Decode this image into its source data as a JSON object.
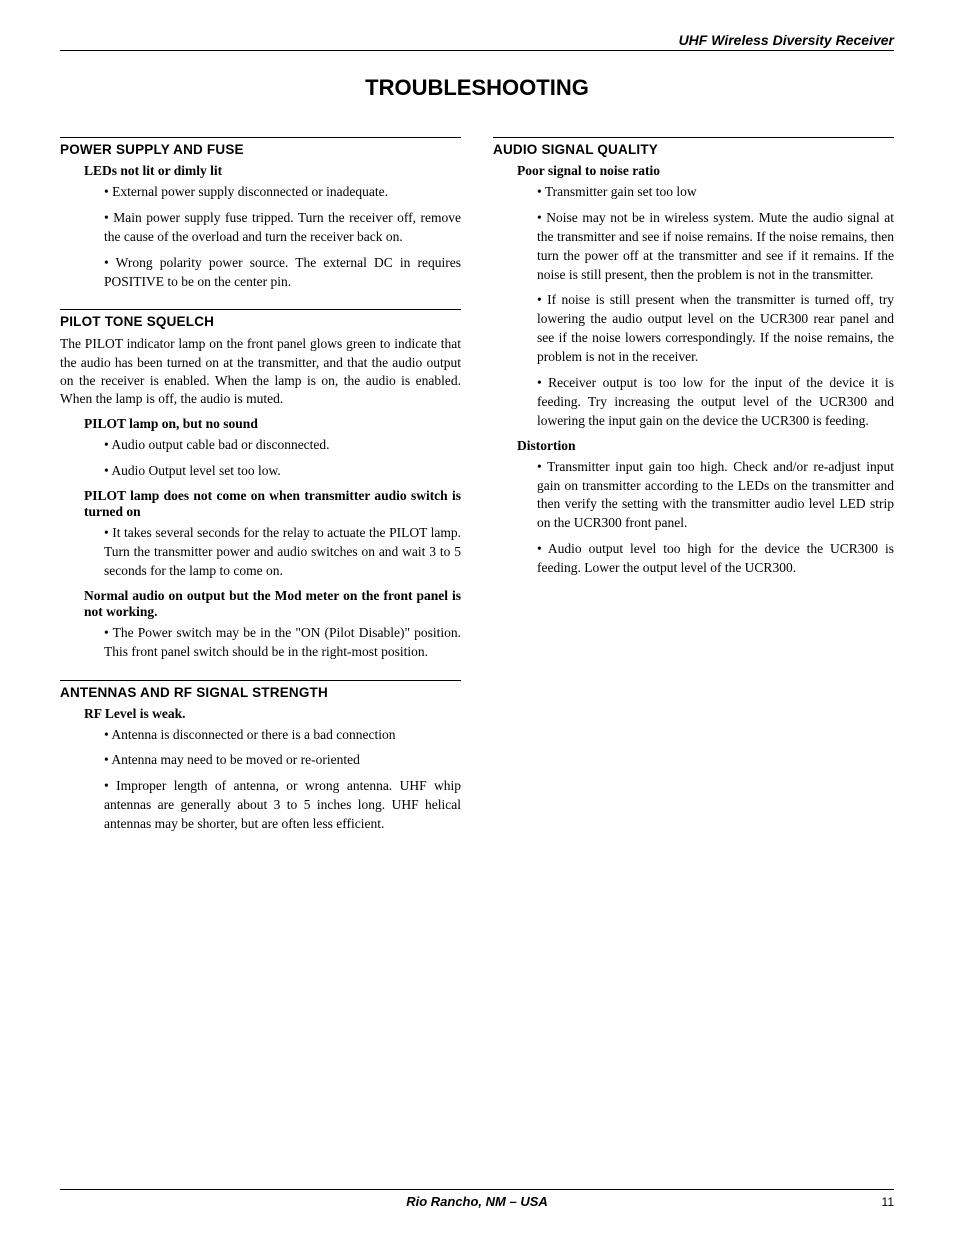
{
  "header": {
    "product": "UHF Wireless Diversity Receiver"
  },
  "title": "TROUBLESHOOTING",
  "left": {
    "s1": {
      "heading": "POWER SUPPLY AND FUSE",
      "sub1": "LEDs not lit or dimly lit",
      "b1": "• External power supply disconnected or inadequate.",
      "b2": "• Main power supply fuse tripped.  Turn the receiver off, remove the cause of the overload and turn the receiver back on.",
      "b3": "• Wrong polarity power source.  The external DC in requires POSITIVE to be on the center pin."
    },
    "s2": {
      "heading": "PILOT TONE SQUELCH",
      "intro": "The PILOT indicator lamp on the front panel glows green to indicate that the audio has been turned on at the transmitter, and that the audio output on the receiver is enabled.  When the lamp is on, the audio is enabled.  When the lamp is off, the audio is muted.",
      "sub1": "PILOT lamp on, but no sound",
      "b1": "• Audio output cable bad or disconnected.",
      "b2": "• Audio Output level set too low.",
      "sub2": "PILOT lamp does not come on when transmitter audio switch is turned on",
      "b3": "• It takes several seconds for the relay to actuate the PILOT lamp. Turn the transmitter power and audio switches on and wait 3 to 5 seconds for the lamp to come on.",
      "sub3": "Normal audio on output but the Mod meter on the front panel is not working.",
      "b4": "• The Power switch may be in the \"ON (Pilot Disable)\" position.  This front panel switch should be in the right-most position."
    },
    "s3": {
      "heading": "ANTENNAS AND RF SIGNAL STRENGTH",
      "sub1": "RF Level is weak.",
      "b1": "• Antenna is disconnected or there is a bad connection",
      "b2": "• Antenna may need to be moved or re-oriented",
      "b3": "• Improper length of antenna, or wrong antenna.  UHF whip antennas are generally about 3 to 5 inches long.  UHF  helical antennas may be shorter, but are often less efficient."
    }
  },
  "right": {
    "s1": {
      "heading": "AUDIO SIGNAL QUALITY",
      "sub1": "Poor signal to noise ratio",
      "b1": "• Transmitter gain set too low",
      "b2": "• Noise may not be in wireless system.  Mute the audio signal at the transmitter and see if noise remains.  If the noise remains, then turn the power off at the transmitter and see if it remains.  If the noise is still present, then the problem is not in the transmitter.",
      "b3": "• If noise is still present when the transmitter is turned off, try lowering the audio output level on the UCR300 rear panel and see if the noise lowers correspondingly.  If the noise remains, the problem is not in the receiver.",
      "b4": "• Receiver output is too low for the input of the device it is feeding.  Try increasing the output level of the UCR300 and lowering the input gain on the device the UCR300 is feeding.",
      "sub2": "Distortion",
      "b5": "• Transmitter input gain too high.  Check and/or re-adjust input gain on transmitter according to the LEDs on the transmitter and then verify the setting with the transmitter audio level LED strip on the UCR300 front panel.",
      "b6": "• Audio output level too high for the device the UCR300 is feeding.  Lower the output level of the UCR300."
    }
  },
  "footer": {
    "center": "Rio Rancho, NM – USA",
    "page": "11"
  }
}
